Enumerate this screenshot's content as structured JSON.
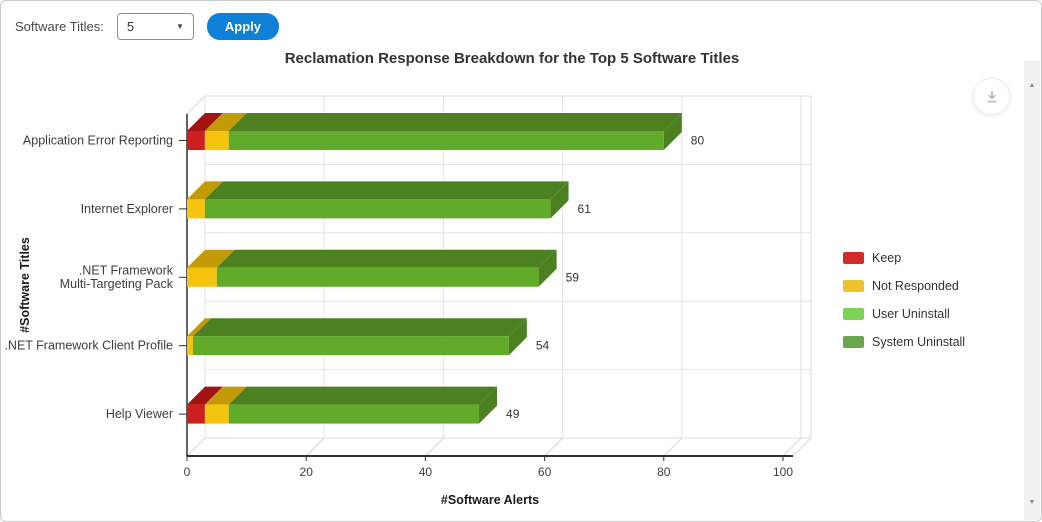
{
  "controls": {
    "software_titles_label": "Software Titles:",
    "dropdown_value": "5",
    "apply_label": "Apply",
    "apply_color": "#0f80d7"
  },
  "chart_data": {
    "type": "bar",
    "orientation": "horizontal",
    "stacked": true,
    "projection": "3d",
    "title": "Reclamation Response Breakdown for the Top 5 Software Titles",
    "xlabel": "#Software Alerts",
    "ylabel": "#Software Titles",
    "xlim": [
      0,
      100
    ],
    "xticks": [
      0,
      20,
      40,
      60,
      80,
      100
    ],
    "grid": true,
    "legend_position": "right",
    "categories": [
      {
        "name": "Application Error Reporting",
        "lines": [
          "Application Error Reporting"
        ]
      },
      {
        "name": "Internet Explorer",
        "lines": [
          "Internet Explorer"
        ]
      },
      {
        "name": ".NET Framework Multi-Targeting Pack",
        "lines": [
          ".NET Framework",
          "Multi-Targeting Pack"
        ]
      },
      {
        "name": ".NET Framework Client Profile",
        "lines": [
          ".NET Framework Client Profile"
        ]
      },
      {
        "name": "Help Viewer",
        "lines": [
          "Help Viewer"
        ]
      }
    ],
    "series": [
      {
        "name": "Keep",
        "color_front": "#ce1f1f",
        "color_top": "#a21313",
        "color_legend": "#d22b2b",
        "values": [
          3,
          0,
          0,
          0,
          3
        ]
      },
      {
        "name": "Not Responded",
        "color_front": "#f4c40e",
        "color_top": "#c39b05",
        "color_legend": "#eec22d",
        "values": [
          4,
          3,
          5,
          1,
          4
        ]
      },
      {
        "name": "User Uninstall",
        "color_front": "#7fd34f",
        "color_top": "#65aa3c",
        "color_legend": "#7cd356",
        "values": [
          0,
          0,
          0,
          0,
          0
        ]
      },
      {
        "name": "System Uninstall",
        "color_front": "#62ab2a",
        "color_top": "#4d8021",
        "color_legend": "#69a64e",
        "values": [
          73,
          58,
          54,
          53,
          42
        ]
      }
    ],
    "totals": [
      80,
      61,
      59,
      54,
      49
    ]
  },
  "icons": {
    "download": "download-icon",
    "scroll_up": "scroll-up-arrow-icon",
    "scroll_down": "scroll-down-arrow-icon",
    "select_caret": "chevron-down-icon"
  }
}
